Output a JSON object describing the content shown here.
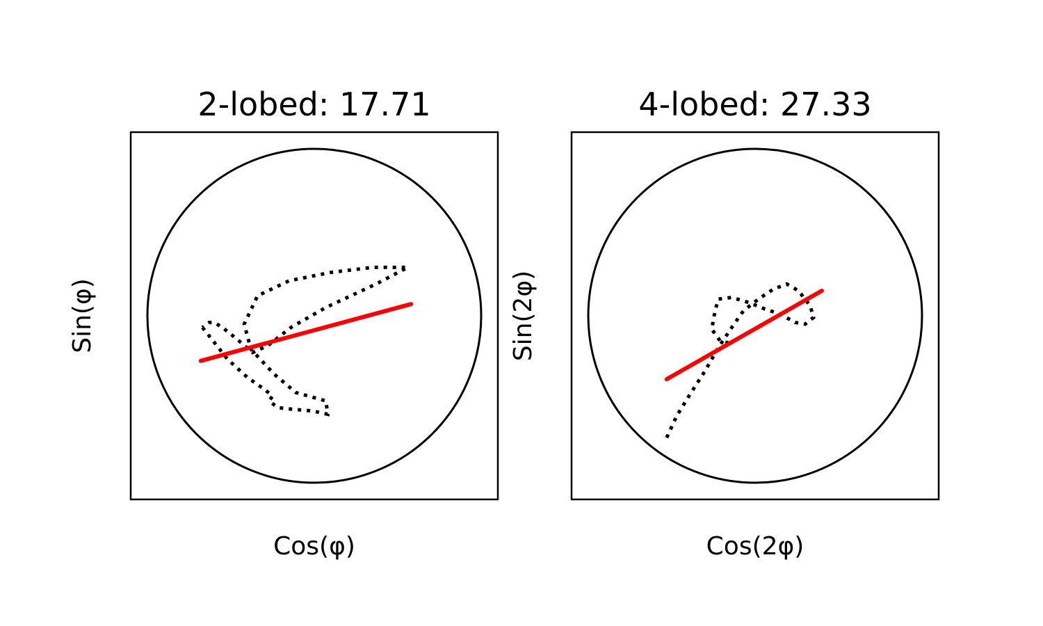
{
  "chart_data": [
    {
      "type": "line",
      "title": "2-lobed: 17.71",
      "xlabel": "Cos(φ)",
      "ylabel": "Sin(φ)",
      "xlim": [
        -1.1,
        1.1
      ],
      "ylim": [
        -1.1,
        1.1
      ],
      "unit_circle": true,
      "grid": false,
      "axis_ticks": false,
      "series": [
        {
          "style": "dotted",
          "color": "#000000",
          "x": [
            -0.67,
            -0.52,
            -0.4,
            -0.3,
            -0.25,
            -0.27,
            -0.22,
            -0.13,
            -0.01,
            0.08,
            0.07,
            -0.11,
            -0.24,
            -0.38,
            -0.42,
            -0.34,
            -0.15,
            0.1,
            0.35,
            0.56,
            0.37,
            0.07,
            -0.14,
            -0.28,
            -0.37,
            -0.44,
            -0.5,
            -0.55,
            -0.6,
            -0.63,
            -0.67
          ],
          "y": [
            -0.07,
            -0.26,
            -0.37,
            -0.44,
            -0.48,
            -0.51,
            -0.55,
            -0.56,
            -0.57,
            -0.59,
            -0.51,
            -0.46,
            -0.35,
            -0.2,
            -0.05,
            0.12,
            0.21,
            0.26,
            0.29,
            0.29,
            0.19,
            0.05,
            -0.07,
            -0.18,
            -0.22,
            -0.16,
            -0.11,
            -0.07,
            -0.04,
            -0.04,
            -0.07
          ]
        },
        {
          "style": "solid",
          "color": "#ff0000",
          "x": [
            -0.68,
            0.58
          ],
          "y": [
            -0.27,
            0.07
          ]
        }
      ]
    },
    {
      "type": "line",
      "title": "4-lobed: 27.33",
      "xlabel": "Cos(2φ)",
      "ylabel": "Sin(2φ)",
      "xlim": [
        -1.1,
        1.1
      ],
      "ylim": [
        -1.1,
        1.1
      ],
      "unit_circle": true,
      "grid": false,
      "axis_ticks": false,
      "series": [
        {
          "style": "dotted",
          "color": "#000000",
          "x": [
            -0.53,
            -0.47,
            -0.39,
            -0.3,
            -0.22,
            -0.14,
            -0.07,
            0.02,
            0.11,
            0.19,
            0.26,
            0.33,
            0.35,
            0.3,
            0.24,
            0.15,
            0.06,
            -0.04,
            -0.14,
            -0.22,
            -0.24,
            -0.26,
            -0.21,
            -0.13
          ],
          "y": [
            -0.73,
            -0.6,
            -0.47,
            -0.33,
            -0.19,
            -0.07,
            0.03,
            0.1,
            0.16,
            0.19,
            0.15,
            0.06,
            -0.01,
            -0.05,
            -0.04,
            0.01,
            0.04,
            0.08,
            0.11,
            0.1,
            0.03,
            -0.08,
            -0.15,
            -0.17
          ]
        },
        {
          "style": "solid",
          "color": "#ff0000",
          "x": [
            -0.53,
            0.4
          ],
          "y": [
            -0.38,
            0.15
          ]
        }
      ]
    }
  ]
}
